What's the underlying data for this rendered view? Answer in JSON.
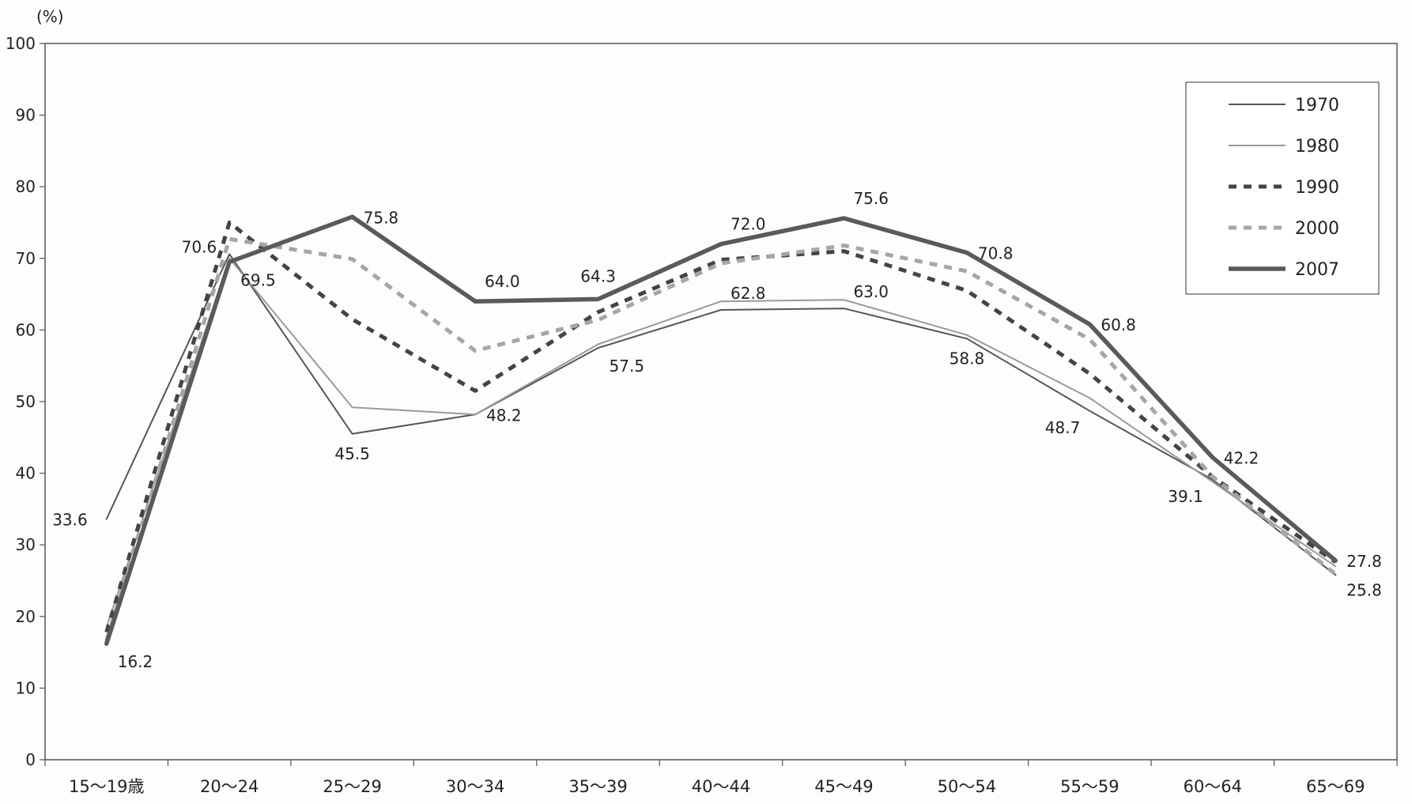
{
  "chart_data": {
    "type": "line",
    "unit_label": "(%)",
    "categories": [
      "15〜19歳",
      "20〜24",
      "25〜29",
      "30〜34",
      "35〜39",
      "40〜44",
      "45〜49",
      "50〜54",
      "55〜59",
      "60〜64",
      "65〜69"
    ],
    "ylim": [
      0,
      100
    ],
    "yticks": [
      0,
      10,
      20,
      30,
      40,
      50,
      60,
      70,
      80,
      90,
      100
    ],
    "grid": false,
    "legend_position": "top-right",
    "series": [
      {
        "name": "1970",
        "values": [
          33.6,
          70.6,
          45.5,
          48.2,
          57.5,
          62.8,
          63.0,
          58.8,
          48.7,
          39.1,
          25.8
        ],
        "color": "#555555",
        "style": "solid-thin"
      },
      {
        "name": "1980",
        "values": [
          18.5,
          70.0,
          49.2,
          48.2,
          58.0,
          64.0,
          64.2,
          59.3,
          50.5,
          38.8,
          27.0
        ],
        "color": "#9a9a9a",
        "style": "solid-thin"
      },
      {
        "name": "1990",
        "values": [
          17.8,
          75.0,
          61.5,
          51.5,
          62.5,
          69.8,
          71.0,
          65.5,
          53.9,
          39.5,
          27.6
        ],
        "color": "#444444",
        "style": "dashed-thick"
      },
      {
        "name": "2000",
        "values": [
          16.6,
          72.7,
          69.9,
          57.1,
          61.4,
          69.3,
          71.8,
          68.2,
          58.7,
          39.5,
          25.9
        ],
        "color": "#a6a6a6",
        "style": "dashed-thick"
      },
      {
        "name": "2007",
        "values": [
          16.2,
          69.5,
          75.8,
          64.0,
          64.3,
          72.0,
          75.6,
          70.8,
          60.8,
          42.2,
          27.8
        ],
        "color": "#5a5a5a",
        "style": "solid-thick"
      }
    ],
    "data_labels": [
      {
        "text": "33.6",
        "category": 0,
        "value": 33.6,
        "anchor": "left"
      },
      {
        "text": "16.2",
        "category": 0,
        "value": 16.2,
        "anchor": "below-right"
      },
      {
        "text": "70.6",
        "category": 1,
        "value": 70.6,
        "anchor": "above-left"
      },
      {
        "text": "69.5",
        "category": 1,
        "value": 69.5,
        "anchor": "below-right"
      },
      {
        "text": "75.8",
        "category": 2,
        "value": 75.8,
        "anchor": "right"
      },
      {
        "text": "45.5",
        "category": 2,
        "value": 45.5,
        "anchor": "below"
      },
      {
        "text": "64.0",
        "category": 3,
        "value": 64.0,
        "anchor": "above-right"
      },
      {
        "text": "48.2",
        "category": 3,
        "value": 48.2,
        "anchor": "right"
      },
      {
        "text": "64.3",
        "category": 4,
        "value": 64.3,
        "anchor": "above"
      },
      {
        "text": "57.5",
        "category": 4,
        "value": 57.5,
        "anchor": "below-right"
      },
      {
        "text": "72.0",
        "category": 5,
        "value": 72.0,
        "anchor": "above-right"
      },
      {
        "text": "62.8",
        "category": 5,
        "value": 62.8,
        "anchor": "above-right-near"
      },
      {
        "text": "75.6",
        "category": 6,
        "value": 75.6,
        "anchor": "above-right"
      },
      {
        "text": "63.0",
        "category": 6,
        "value": 63.0,
        "anchor": "above-right-near"
      },
      {
        "text": "70.8",
        "category": 7,
        "value": 70.8,
        "anchor": "right"
      },
      {
        "text": "58.8",
        "category": 7,
        "value": 58.8,
        "anchor": "below"
      },
      {
        "text": "60.8",
        "category": 8,
        "value": 60.8,
        "anchor": "right"
      },
      {
        "text": "48.7",
        "category": 8,
        "value": 48.7,
        "anchor": "below-left"
      },
      {
        "text": "42.2",
        "category": 9,
        "value": 42.2,
        "anchor": "right"
      },
      {
        "text": "39.1",
        "category": 9,
        "value": 39.1,
        "anchor": "below-left"
      },
      {
        "text": "27.8",
        "category": 10,
        "value": 27.8,
        "anchor": "right"
      },
      {
        "text": "25.8",
        "category": 10,
        "value": 25.8,
        "anchor": "right-below"
      }
    ]
  }
}
